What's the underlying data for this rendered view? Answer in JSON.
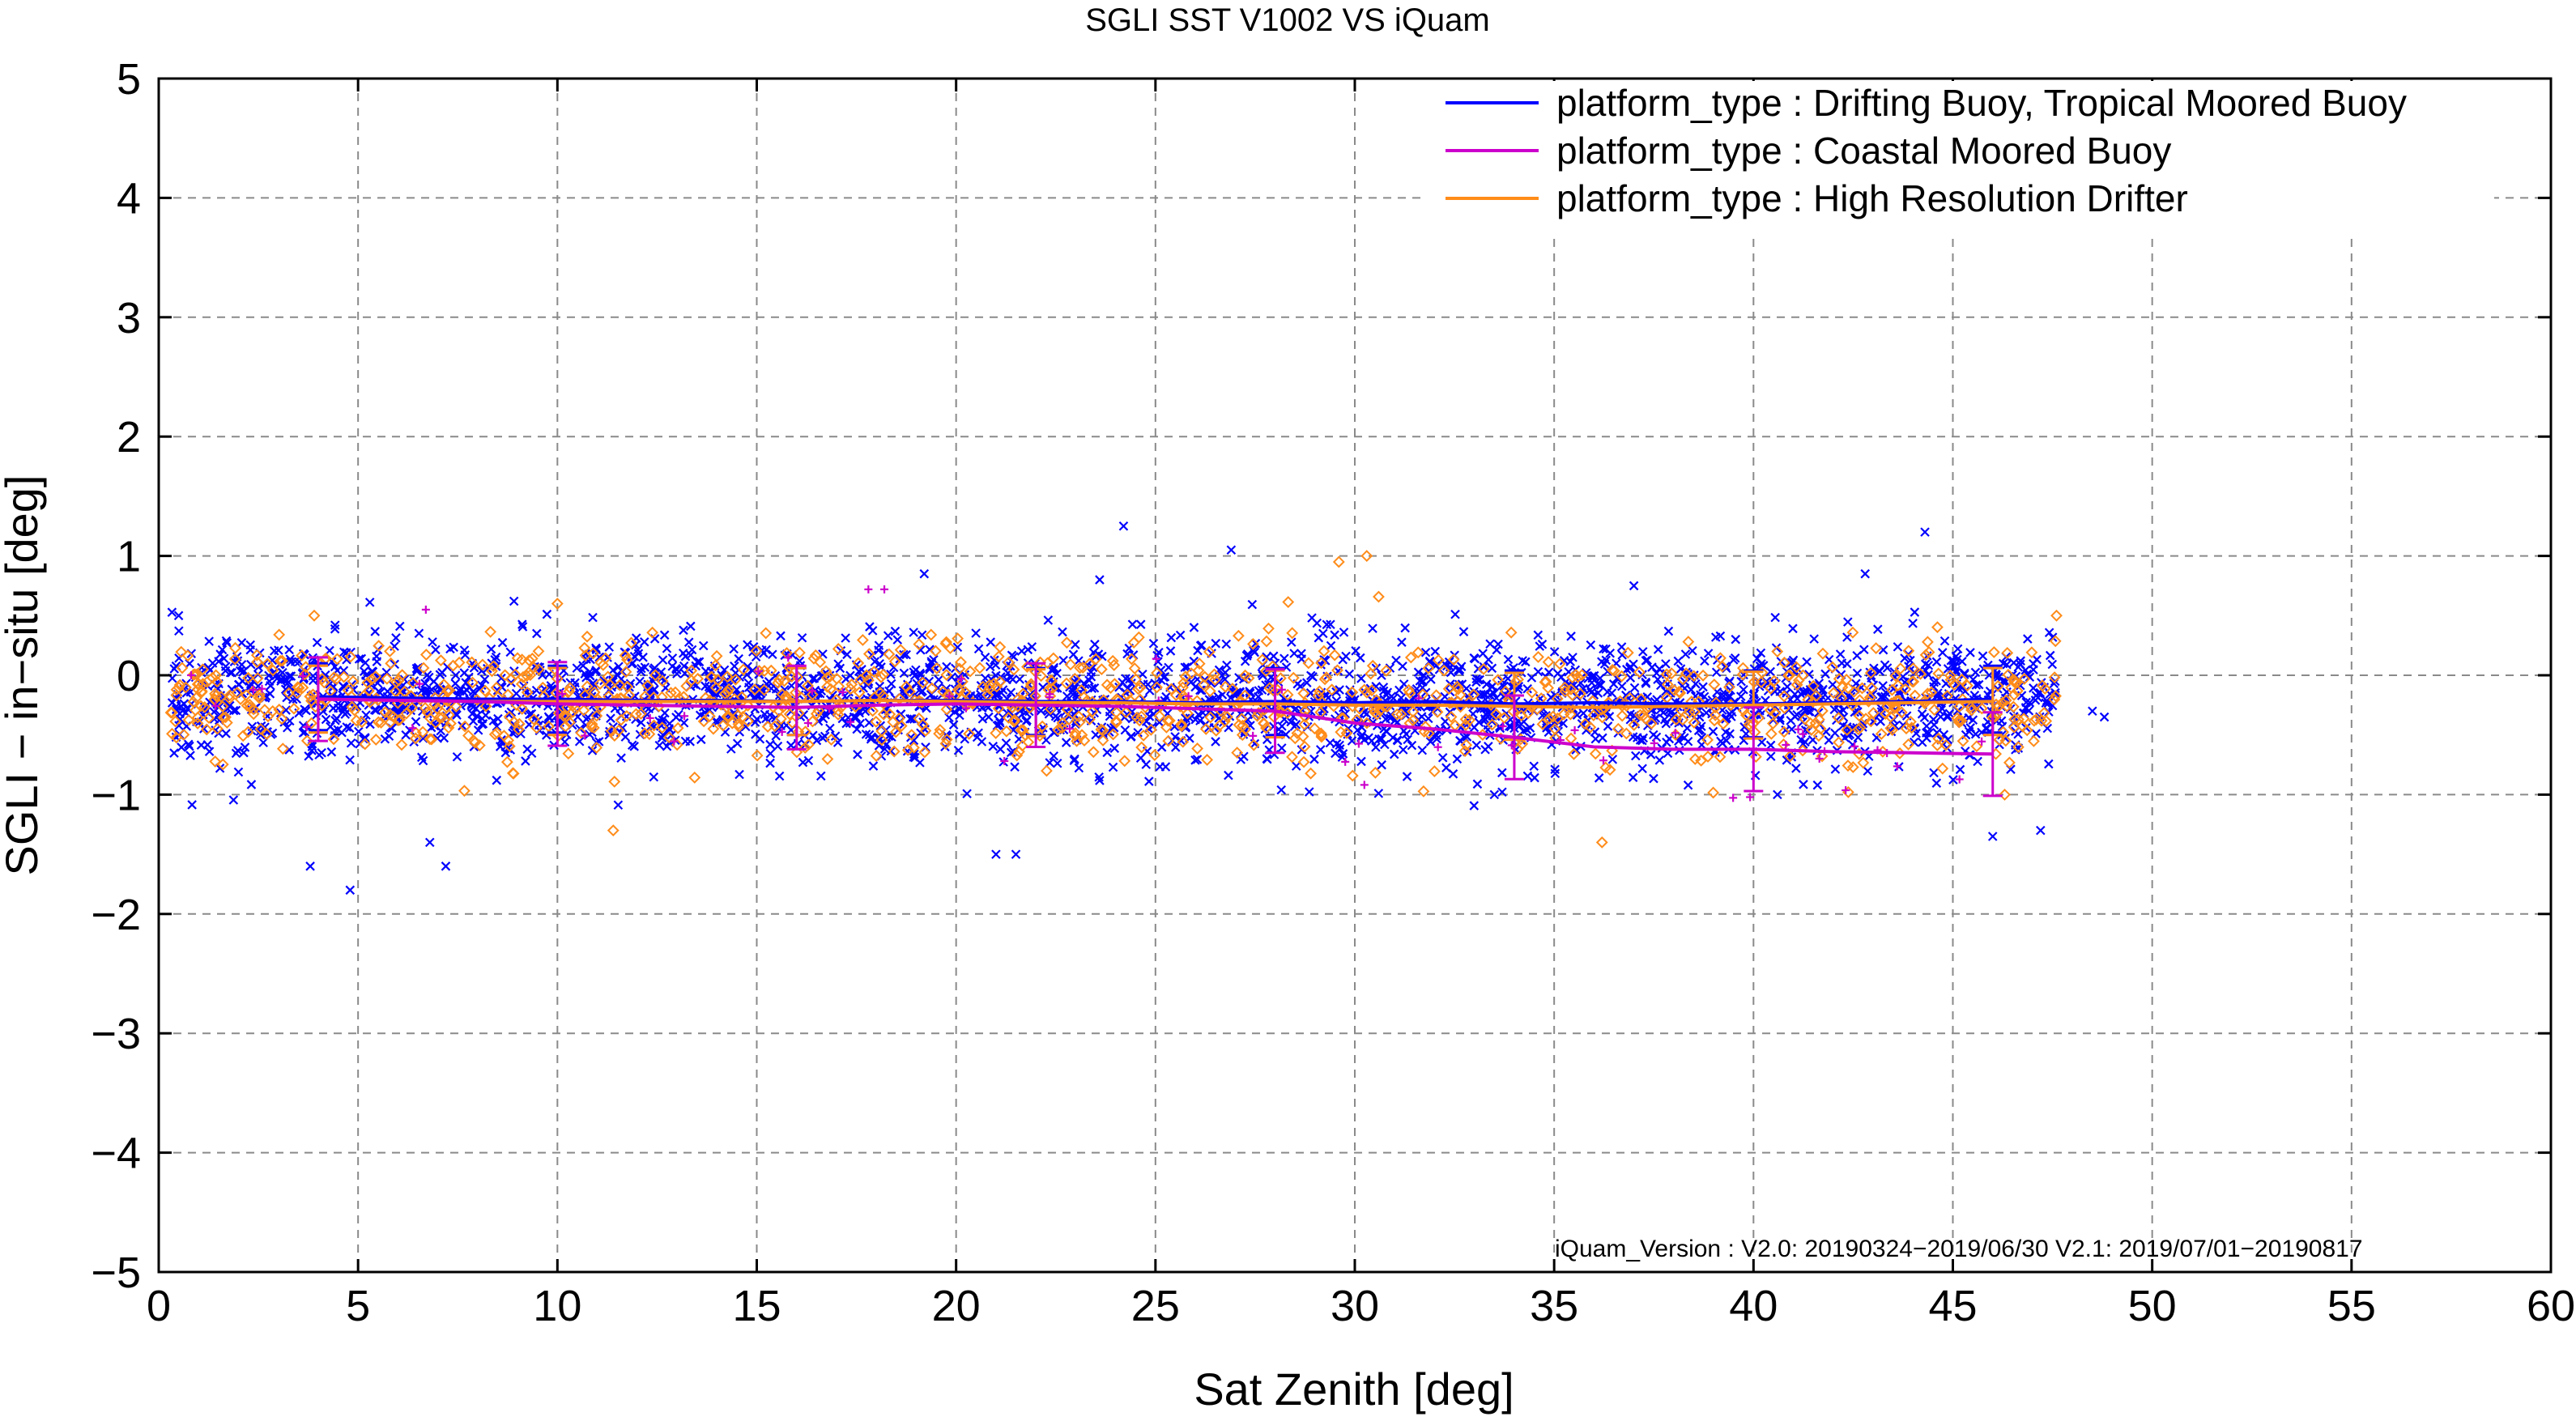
{
  "chart_data": {
    "type": "scatter",
    "title": "SGLI SST V1002 VS iQuam",
    "xlabel": "Sat Zenith [deg]",
    "ylabel": "SGLI − in−situ [deg]",
    "xlim": [
      0,
      60
    ],
    "ylim": [
      -5,
      5
    ],
    "x_ticks": [
      0,
      5,
      10,
      15,
      20,
      25,
      30,
      35,
      40,
      45,
      50,
      55,
      60
    ],
    "y_ticks": [
      -5,
      -4,
      -3,
      -2,
      -1,
      0,
      1,
      2,
      3,
      4,
      5
    ],
    "x_tick_labels": [
      "0",
      "5",
      "10",
      "15",
      "20",
      "25",
      "30",
      "35",
      "40",
      "45",
      "50",
      "55",
      "60"
    ],
    "y_tick_labels": [
      "−5",
      "−4",
      "−3",
      "−2",
      "−1",
      "0",
      "1",
      "2",
      "3",
      "4",
      "5"
    ],
    "grid": true,
    "legend_position": "top-right",
    "annotation": "iQuam_Version :  V2.0: 20190324−2019/06/30 V2.1: 2019/07/01−20190817",
    "series": [
      {
        "name": "platform_type : Drifting Buoy, Tropical Moored Buoy",
        "color": "#0000ff",
        "marker": "x",
        "mean_x": [
          4,
          6,
          8,
          10,
          12,
          14,
          16,
          18,
          20,
          22,
          24,
          26,
          28,
          30,
          32,
          34,
          36,
          38,
          40,
          42,
          44,
          46
        ],
        "mean_y": [
          -0.18,
          -0.19,
          -0.2,
          -0.2,
          -0.21,
          -0.21,
          -0.22,
          -0.21,
          -0.21,
          -0.22,
          -0.22,
          -0.23,
          -0.22,
          -0.23,
          -0.22,
          -0.24,
          -0.23,
          -0.24,
          -0.24,
          -0.23,
          -0.22,
          -0.2
        ],
        "outliers": [
          [
            0.5,
            0.5
          ],
          [
            3.8,
            -1.6
          ],
          [
            4.8,
            -1.8
          ],
          [
            6.8,
            -1.4
          ],
          [
            7.2,
            -1.6
          ],
          [
            21.0,
            -1.5
          ],
          [
            21.5,
            -1.5
          ],
          [
            24.2,
            1.25
          ],
          [
            23.6,
            0.8
          ],
          [
            19.2,
            0.85
          ],
          [
            26.9,
            1.05
          ],
          [
            44.3,
            1.2
          ],
          [
            42.8,
            0.85
          ],
          [
            46.0,
            -1.35
          ],
          [
            47.2,
            -1.3
          ],
          [
            48.5,
            -0.3
          ],
          [
            48.8,
            -0.35
          ],
          [
            37.0,
            0.75
          ],
          [
            40.6,
            -1.0
          ],
          [
            33.5,
            -1.0
          ]
        ]
      },
      {
        "name": "platform_type : Coastal Moored Buoy",
        "color": "#cc00cc",
        "marker": "+",
        "mean_x": [
          4,
          6,
          8,
          10,
          12,
          14,
          16,
          18,
          20,
          22,
          24,
          26,
          28,
          30,
          32,
          34,
          36,
          38,
          40,
          42,
          44,
          46
        ],
        "mean_y": [
          -0.2,
          -0.21,
          -0.22,
          -0.24,
          -0.25,
          -0.26,
          -0.27,
          -0.25,
          -0.24,
          -0.25,
          -0.26,
          -0.28,
          -0.3,
          -0.4,
          -0.45,
          -0.52,
          -0.6,
          -0.62,
          -0.62,
          -0.64,
          -0.65,
          -0.66
        ],
        "outliers": [
          [
            6.7,
            0.55
          ],
          [
            17.8,
            0.72
          ],
          [
            18.2,
            0.72
          ]
        ]
      },
      {
        "name": "platform_type : High Resolution Drifter",
        "color": "#ff8c1a",
        "marker": "diamond",
        "mean_x": [
          4,
          6,
          8,
          10,
          12,
          14,
          16,
          18,
          20,
          22,
          24,
          26,
          28,
          30,
          32,
          34,
          36,
          38,
          40,
          42,
          44,
          46
        ],
        "mean_y": [
          -0.2,
          -0.21,
          -0.22,
          -0.22,
          -0.22,
          -0.22,
          -0.22,
          -0.21,
          -0.22,
          -0.23,
          -0.23,
          -0.24,
          -0.24,
          -0.25,
          -0.25,
          -0.26,
          -0.27,
          -0.26,
          -0.25,
          -0.24,
          -0.23,
          -0.22
        ],
        "outliers": [
          [
            29.6,
            0.95
          ],
          [
            30.3,
            1.0
          ],
          [
            11.4,
            -1.3
          ],
          [
            36.2,
            -1.4
          ],
          [
            46.3,
            -1.0
          ],
          [
            10.0,
            0.6
          ],
          [
            3.9,
            0.5
          ],
          [
            47.6,
            0.5
          ]
        ]
      }
    ]
  }
}
